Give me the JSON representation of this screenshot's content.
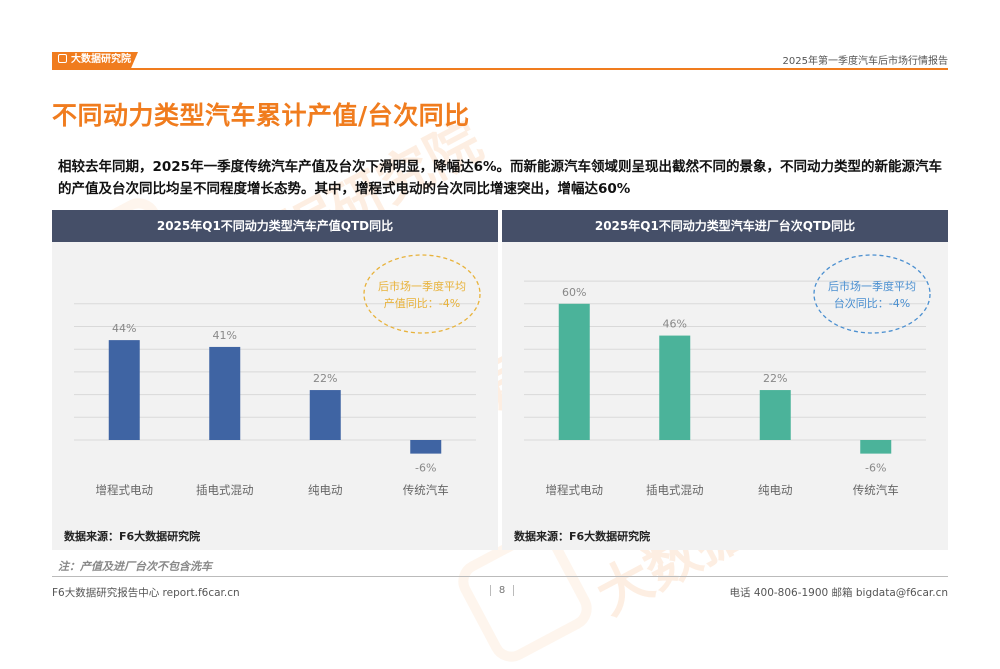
{
  "header": {
    "logo_text": "大数据研究院",
    "report_title": "2025年第一季度汽车后市场行情报告"
  },
  "page_title": "不同动力类型汽车累计产值/台次同比",
  "summary": "相较去年同期，2025年一季度传统汽车产值及台次下滑明显，降幅达6%。而新能源汽车领域则呈现出截然不同的景象，不同动力类型的新能源汽车的产值及台次同比均呈不同程度增长态势。其中，增程式电动的台次同比增速突出，增幅达60%",
  "colors": {
    "brand": "#f07c1e",
    "panel_header": "#454f68",
    "panel_bg": "#f2f2f2",
    "left_bar": "#3f64a3",
    "right_bar": "#4bb39a",
    "left_bubble": "#e8b23a",
    "right_bubble": "#4a8fd0"
  },
  "chart_data": [
    {
      "type": "bar",
      "title": "2025年Q1不同动力类型汽车产值QTD同比",
      "categories": [
        "增程式电动",
        "插电式混动",
        "纯电动",
        "传统汽车"
      ],
      "values": [
        44,
        41,
        22,
        -6
      ],
      "value_labels": [
        "44%",
        "41%",
        "22%",
        "-6%"
      ],
      "unit": "%",
      "ylim": [
        -10,
        60
      ],
      "grid": true,
      "callout": {
        "line1": "后市场一季度平均",
        "line2": "产值同比：-4%"
      },
      "source": "数据来源：F6大数据研究院"
    },
    {
      "type": "bar",
      "title": "2025年Q1不同动力类型汽车进厂台次QTD同比",
      "categories": [
        "增程式电动",
        "插电式混动",
        "纯电动",
        "传统汽车"
      ],
      "values": [
        60,
        46,
        22,
        -6
      ],
      "value_labels": [
        "60%",
        "46%",
        "22%",
        "-6%"
      ],
      "unit": "%",
      "ylim": [
        -10,
        70
      ],
      "grid": true,
      "callout": {
        "line1": "后市场一季度平均",
        "line2": "台次同比：-4%"
      },
      "source": "数据来源：F6大数据研究院"
    }
  ],
  "note": "注：产值及进厂台次不包含洗车",
  "footer": {
    "left": "F6大数据研究报告中心 report.f6car.cn",
    "page": "8",
    "right": "电话 400-806-1900  邮箱 bigdata@f6car.cn"
  },
  "watermark": "大数据研究院"
}
